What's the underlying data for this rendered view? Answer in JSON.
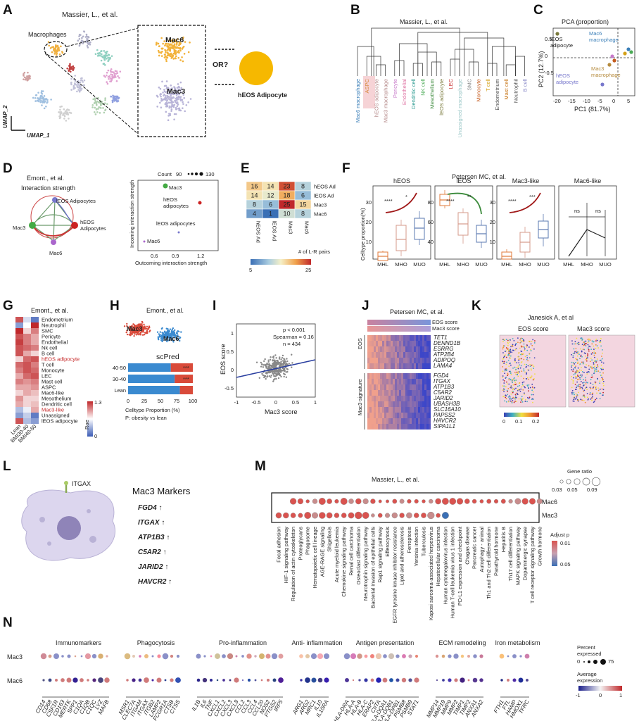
{
  "panel_labels": [
    "A",
    "B",
    "C",
    "D",
    "E",
    "F",
    "G",
    "H",
    "I",
    "J",
    "K",
    "L",
    "M",
    "N"
  ],
  "A": {
    "title": "Massier, L., et al.",
    "macrophages": "Macrophages",
    "mac6": "Mac6",
    "mac3": "Mac3",
    "or": "OR?",
    "adipocyte": "hEOS Adipocyte",
    "umap1": "UMAP_1",
    "umap2": "UMAP_2"
  },
  "B": {
    "title": "Massier, L., et al.",
    "leaves": [
      {
        "label": "Mac6 macrophage",
        "color": "#3b7fb8"
      },
      {
        "label": "ASPC",
        "color": "#d6883b"
      },
      {
        "label": "hEOS adipocyte",
        "color": "#b58a8a"
      },
      {
        "label": "Mac3 macrophage",
        "color": "#b58a8a"
      },
      {
        "label": "Pericyte",
        "color": "#c77ac9"
      },
      {
        "label": "Endothelial",
        "color": "#e07aa7"
      },
      {
        "label": "Dendritic cell",
        "color": "#2a9a8f"
      },
      {
        "label": "NK cell",
        "color": "#4aaa55"
      },
      {
        "label": "Mesothelium",
        "color": "#3c8a3c"
      },
      {
        "label": "lEOS adipocyte",
        "color": "#7a7a3c"
      },
      {
        "label": "LEC",
        "color": "#c62828"
      },
      {
        "label": "Unassigned macrophage",
        "color": "#9ec9c9"
      },
      {
        "label": "SMC",
        "color": "#8a8a8a"
      },
      {
        "label": "Monocyte",
        "color": "#c45b1e"
      },
      {
        "label": "T cell",
        "color": "#d4a017"
      },
      {
        "label": "Endometrium",
        "color": "#555555"
      },
      {
        "label": "Mast cell",
        "color": "#c97a1e"
      },
      {
        "label": "Neutrophil",
        "color": "#555555"
      },
      {
        "label": "B cell",
        "color": "#8a8ac9"
      }
    ]
  },
  "C": {
    "title": "PCA (proportion)",
    "xlabel": "PC1 (81.7%)",
    "ylabel": "PC2 (12.7%)",
    "xticks": [
      "-20",
      "-15",
      "-10",
      "-5",
      "0",
      "5"
    ],
    "yticks": [
      "0.5",
      "0",
      "-0.5"
    ],
    "labels": {
      "leos": "lEOS\nadipocyte",
      "mac6": "Mac6\nmacrophage",
      "mac3": "Mac3\nmacrophage",
      "heos": "hEOS\nadipocyte"
    }
  },
  "D": {
    "title1": "Emont., et al.",
    "title2": "Interaction strength",
    "nodes": [
      "lEOS Adipocytes",
      "Mac3",
      "hEOS\nAdipocytes",
      "Mac6"
    ],
    "count_label": "Count",
    "count_min": "90",
    "count_max": "130",
    "xlabel": "Outcoming interaction strength",
    "ylabel": "Incoming interaction strength",
    "xticks": [
      "0.6",
      "0.9",
      "1.2"
    ],
    "points": [
      {
        "label": "Mac3",
        "color": "#44aa44"
      },
      {
        "label": "hEOS\nadipocytes",
        "color": "#cc2222"
      },
      {
        "label": "lEOS adipocytes",
        "color": "#7777cc"
      },
      {
        "label": "Mac6",
        "color": "#aa66cc"
      }
    ]
  },
  "E": {
    "rows": [
      "hEOS Ad",
      "lEOS Ad",
      "Mac3",
      "Mac6"
    ],
    "cols": [
      "hEOS Ad",
      "lEOS Ad",
      "Mac3",
      "Mac6"
    ],
    "values": [
      [
        16,
        14,
        23,
        8
      ],
      [
        14,
        12,
        18,
        6
      ],
      [
        8,
        6,
        25,
        15
      ],
      [
        4,
        1,
        10,
        8
      ]
    ],
    "legend_label": "# of L-R pairs",
    "legend_min": "5",
    "legend_max": "25"
  },
  "F": {
    "title": "Petersen MC, et al.",
    "ylabel": "Celltype proportion(%)",
    "panels": [
      {
        "title": "hEOS",
        "yticks": [
          "10",
          "20",
          "30"
        ],
        "x": [
          "MHL",
          "MHO",
          "MUO"
        ],
        "sig": [
          "****",
          "*"
        ]
      },
      {
        "title": "lEOS",
        "yticks": [
          "40",
          "60",
          "80"
        ],
        "x": [
          "MHL",
          "MHO",
          "MUO"
        ],
        "sig": [
          "****",
          "**"
        ]
      },
      {
        "title": "Mac3-like",
        "yticks": [
          "10",
          "20",
          "30"
        ],
        "x": [
          "MHL",
          "MHO",
          "MUO"
        ],
        "sig": [
          "****",
          "***"
        ]
      },
      {
        "title": "Mac6-like",
        "yticks": [],
        "x": [
          "MHL",
          "MHO",
          "MUO"
        ],
        "sig": [
          "ns",
          "ns"
        ]
      }
    ]
  },
  "G": {
    "title": "Emont., et al.",
    "rows": [
      "Endometrium",
      "Neutrophil",
      "SMC",
      "Pericyte",
      "Endothelial",
      "Nk cell",
      "B cell",
      "hEOS adipocyte",
      "T cell",
      "Monocyte",
      "LEC",
      "Mast cell",
      "ASPC",
      "Mac6-like",
      "Mesothelium",
      "Dendritic cell",
      "Mac3-like",
      "Unassigned",
      "lEOS adipocyte"
    ],
    "highlight": [
      "hEOS adipocyte",
      "Mac3-like"
    ],
    "cols": [
      "Lean",
      "BMI30-40",
      "BMI40-50"
    ],
    "legend_label": "Roe",
    "legend_max": "1.3",
    "legend_min": "0"
  },
  "H": {
    "title": "Emont., et al.",
    "mac3": "Mac3",
    "mac6": "Mac6",
    "subtitle": "scPred",
    "bars": [
      {
        "label": "40-50",
        "mac6": 66,
        "mac3": 34,
        "sig": "***"
      },
      {
        "label": "30-40",
        "mac6": 72,
        "mac3": 28,
        "sig": "***"
      },
      {
        "label": "Lean",
        "mac6": 80,
        "mac3": 20,
        "sig": ""
      }
    ],
    "xticks": [
      "0",
      "25",
      "50",
      "75",
      "100"
    ],
    "xlabel": "Celltype Proportion (%)",
    "note": "P: obesity vs lean"
  },
  "I": {
    "xlabel": "Mac3 score",
    "ylabel": "EOS score",
    "stats": [
      "p < 0.001",
      "Spearman = 0.16",
      "n = 434"
    ],
    "xticks": [
      "-1",
      "-0.5",
      "0",
      "0.5",
      "1"
    ],
    "yticks": [
      "1",
      "0.5",
      "0",
      "-0.5"
    ]
  },
  "J": {
    "title": "Petersen MC, et al.",
    "scores": [
      "EOS score",
      "Mac3 score"
    ],
    "eos_genes": [
      "TET1",
      "DENND1B",
      "ESRRG",
      "ATP2B4",
      "ADIPOQ",
      "LAMA4"
    ],
    "mac3_genes": [
      "FGD4",
      "ITGAX",
      "ATP1B3",
      "C5AR2",
      "JARID2",
      "UBASH3B",
      "SLC16A10",
      "PAPSS2",
      "HAVCR2",
      "SIPA1L1"
    ],
    "group_eos": "EOS",
    "group_mac3": "Mac3-signature"
  },
  "K": {
    "title": "Janesick A, et al",
    "left": "EOS score",
    "right": "Mac3 score",
    "ticks": [
      "0",
      "0.1",
      "0.2"
    ]
  },
  "L": {
    "itgax": "ITGAX",
    "title": "Mac3 Markers",
    "markers": [
      "FGD4 ↑",
      "ITGAX ↑",
      "ATP1B3 ↑",
      "C5AR2 ↑",
      "JARID2 ↑",
      "HAVCR2 ↑"
    ]
  },
  "M": {
    "title": "Massier, L., et al.",
    "rows": [
      "Mac6",
      "Mac3"
    ],
    "terms": [
      "Focal adhesion",
      "HIF-1 signaling pathway",
      "Regulation of actin cytoskeleton",
      "Proteoglycans",
      "Phagosome",
      "Hematopoietic cell lineage",
      "AGE-RAGE signaling",
      "Shigellosis",
      "Acute myeloid leukemia",
      "Chemokine signaling pathway",
      "Renal cell carcinoma",
      "Osteoclast differentiation",
      "Neurotrophin signaling pathway",
      "Bacterial invasion of epithelial cells",
      "Rap1 signaling pathway",
      "Efferocytosis",
      "EGFR tyrosine kinase inhibitor resistance",
      "Lipid and atherosclerosis",
      "Ferroptosis",
      "Yersinia infection",
      "Tuberculosis",
      "Kaposi sarcoma-associated herpesvirus",
      "Hepatocellular carcinoma",
      "Human cytomegalovirus infection",
      "Human T-cell leukemia virus 1 infection",
      "PD-L1 expression and checkpoint",
      "Chagas disease",
      "Pancreatic cancer",
      "Autophagy - animal",
      "Th1 and Th2 cell differentiation",
      "Parathyroid hormone",
      "Hepatitis B",
      "Th17 cell differentiation",
      "MAPK signaling pathway",
      "Dopaminergic synapse",
      "T cell receptor signaling pathway",
      "Growth hormone"
    ],
    "gene_ratio_label": "Gene ratio",
    "gr_ticks": [
      "0.03",
      "0.05",
      "0.09"
    ],
    "adj_label": "Adjust p",
    "adj_ticks": [
      "0.01",
      "0.05"
    ]
  },
  "N": {
    "rows": [
      "Mac3",
      "Mac6"
    ],
    "groups": [
      {
        "name": "Immunomarkers",
        "genes": [
          "CD14",
          "CD68",
          "CSF1R",
          "CD163",
          "MERTK",
          "SPP1",
          "C1QA",
          "C1QB",
          "C1QC",
          "LYZ",
          "MAFB"
        ]
      },
      {
        "name": "Phagocytosis",
        "genes": [
          "MSR1",
          "CLEC7A",
          "ITGAM",
          "ITGAX",
          "ITGB2",
          "LAMP2",
          "FCGR1A",
          "CTSB",
          "CTSS"
        ]
      },
      {
        "name": "Pro-inflammation",
        "genes": [
          "IL1B",
          "IL6",
          "TNF",
          "CXCL1",
          "CXCL2",
          "CXCL3",
          "CXCL8",
          "CCL2",
          "CCL3",
          "CCL4",
          "CCL20",
          "NOS2",
          "PTGS2",
          "IRF5"
        ]
      },
      {
        "name": "Anti- inflammation",
        "genes": [
          "ARG1",
          "ARG2",
          "MRC1",
          "IL10",
          "IL10RA"
        ]
      },
      {
        "name": "Antigen presentation",
        "genes": [
          "HLA-DRA",
          "HLA-A",
          "HLA-B",
          "HLA-C",
          "ERAP2",
          "CIITA",
          "HLA-DQA1",
          "HLA-DQB1",
          "HLA-DPB1",
          "PSMB8",
          "PSMB9",
          "STAT1"
        ]
      },
      {
        "name": "ECM remodeling",
        "genes": [
          "MMP14",
          "MMP19",
          "MMP9",
          "MMP2",
          "TIMP1",
          "TIMP2",
          "ANXA1",
          "ANXA2"
        ]
      },
      {
        "name": "Iron metabolism",
        "genes": [
          "FTH1",
          "FTL",
          "HAMP",
          "HMOX1",
          "TFRC"
        ]
      }
    ],
    "pct_label": "Percent\nexpressed",
    "pct_ticks": [
      "0",
      "75"
    ],
    "avg_label": "Average\nexpression",
    "avg_ticks": [
      "-1",
      "0",
      "1"
    ]
  }
}
